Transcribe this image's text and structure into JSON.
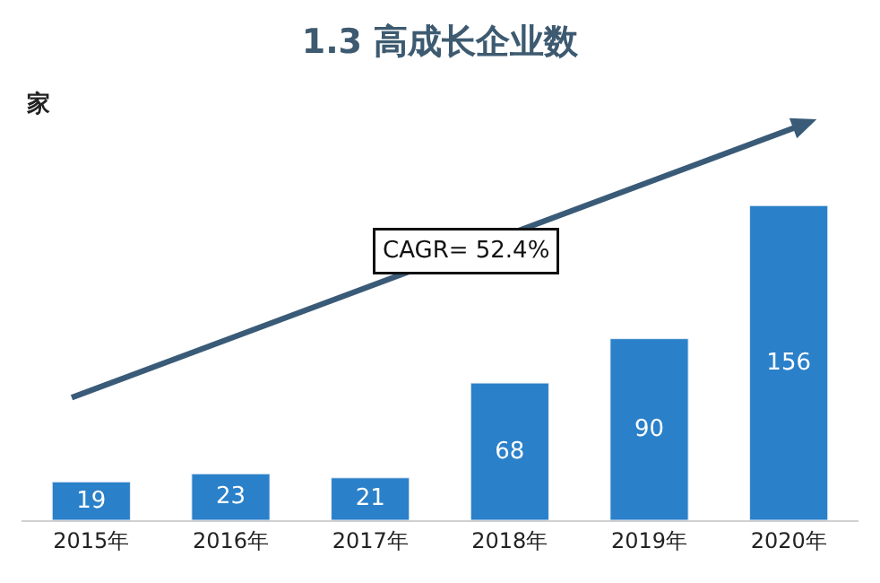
{
  "chart_data": {
    "type": "bar",
    "title": "1.3 高成长企业数",
    "ylabel": "家",
    "categories": [
      "2015年",
      "2016年",
      "2017年",
      "2018年",
      "2019年",
      "2020年"
    ],
    "values": [
      19,
      23,
      21,
      68,
      90,
      156
    ],
    "color": "#2a80c9",
    "data_labels": true,
    "annotations": [
      "CAGR= 52.4%"
    ],
    "legend": false
  }
}
